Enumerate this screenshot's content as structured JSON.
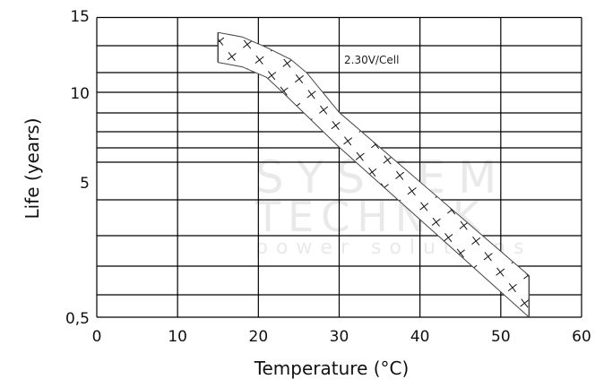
{
  "chart_data": {
    "type": "area",
    "title": "",
    "xlabel": "Temperature (°C)",
    "ylabel": "Life (years)",
    "xlim": [
      0,
      60
    ],
    "x_ticks": [
      "0",
      "10",
      "20",
      "30",
      "40",
      "50",
      "60"
    ],
    "y_ticks": [
      "15",
      "10",
      "5",
      "0,5"
    ],
    "grid": true,
    "annotation": "2.30V/Cell",
    "series": [
      {
        "band_upper": [
          [
            15,
            14
          ],
          [
            18,
            13.7
          ],
          [
            21,
            13
          ],
          [
            24,
            12.2
          ],
          [
            26,
            11.3
          ],
          [
            30,
            8.9
          ],
          [
            53.5,
            1.9
          ]
        ],
        "band_lower": [
          [
            15,
            12
          ],
          [
            18,
            11.7
          ],
          [
            21,
            11
          ],
          [
            23,
            10
          ],
          [
            30,
            7.0
          ],
          [
            53.5,
            0.5
          ]
        ],
        "fill_pattern": "plus-hatch"
      }
    ],
    "colors": {
      "grid": "#000000",
      "band_outline": "#444444",
      "watermark": "#e6e6e6"
    }
  },
  "watermark": {
    "line1": "SYSTEM",
    "line2": "TECHNIK",
    "line3": "power solutions"
  }
}
